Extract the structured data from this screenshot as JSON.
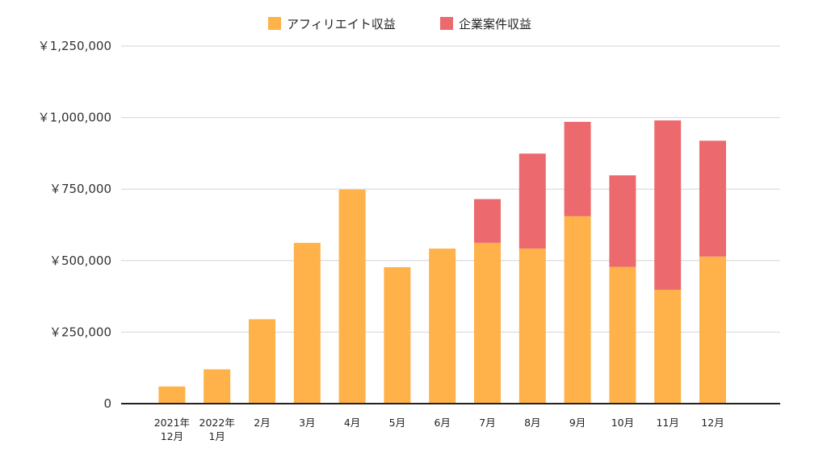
{
  "chart_data": {
    "type": "bar",
    "stacked": true,
    "title": "",
    "xlabel": "",
    "ylabel": "",
    "ylim": [
      0,
      1250000
    ],
    "y_ticks": [
      0,
      250000,
      500000,
      750000,
      1000000,
      1250000
    ],
    "y_tick_labels": [
      "0",
      "￥250,000",
      "￥500,000",
      "￥750,000",
      "￥1,000,000",
      "￥1,250,000"
    ],
    "grid": true,
    "legend_position": "top",
    "categories": [
      "2021年\n12月",
      "2022年\n1月",
      "2月",
      "3月",
      "4月",
      "5月",
      "6月",
      "7月",
      "8月",
      "9月",
      "10月",
      "11月",
      "12月"
    ],
    "series": [
      {
        "name": "アフィリエイト収益",
        "color": "#FFB14A",
        "values": [
          60000,
          120000,
          295000,
          562000,
          748000,
          477000,
          542000,
          562000,
          542000,
          655000,
          478000,
          398000,
          514000
        ]
      },
      {
        "name": "企業案件収益",
        "color": "#EC6A6E",
        "values": [
          0,
          0,
          0,
          0,
          0,
          0,
          0,
          153000,
          332000,
          330000,
          320000,
          592000,
          405000
        ]
      }
    ]
  }
}
